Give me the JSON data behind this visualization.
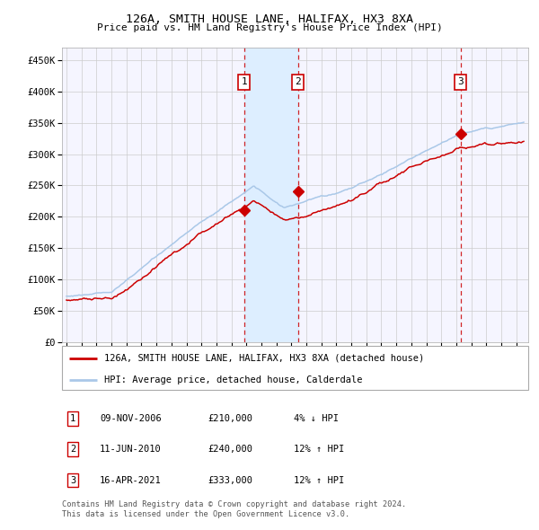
{
  "title1": "126A, SMITH HOUSE LANE, HALIFAX, HX3 8XA",
  "title2": "Price paid vs. HM Land Registry's House Price Index (HPI)",
  "ylabel_ticks": [
    "£0",
    "£50K",
    "£100K",
    "£150K",
    "£200K",
    "£250K",
    "£300K",
    "£350K",
    "£400K",
    "£450K"
  ],
  "ytick_values": [
    0,
    50000,
    100000,
    150000,
    200000,
    250000,
    300000,
    350000,
    400000,
    450000
  ],
  "ylim": [
    0,
    470000
  ],
  "xlim_start": 1994.7,
  "xlim_end": 2025.8,
  "transactions": [
    {
      "label": "1",
      "date_str": "09-NOV-2006",
      "year": 2006.86,
      "price": 210000,
      "pct": "4%",
      "dir": "↓"
    },
    {
      "label": "2",
      "date_str": "11-JUN-2010",
      "year": 2010.44,
      "price": 240000,
      "pct": "12%",
      "dir": "↑"
    },
    {
      "label": "3",
      "date_str": "16-APR-2021",
      "year": 2021.29,
      "price": 333000,
      "pct": "12%",
      "dir": "↑"
    }
  ],
  "legend_line1": "126A, SMITH HOUSE LANE, HALIFAX, HX3 8XA (detached house)",
  "legend_line2": "HPI: Average price, detached house, Calderdale",
  "footer1": "Contains HM Land Registry data © Crown copyright and database right 2024.",
  "footer2": "This data is licensed under the Open Government Licence v3.0.",
  "red_color": "#cc0000",
  "blue_color": "#aac8e8",
  "shade_color": "#ddeeff",
  "bg_color": "#f5f5ff",
  "grid_color": "#cccccc"
}
